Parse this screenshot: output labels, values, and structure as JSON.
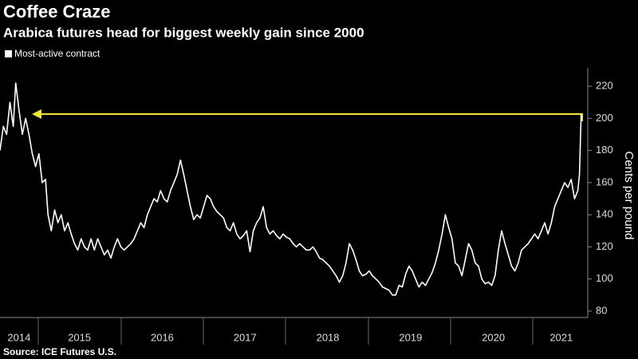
{
  "chart_data": {
    "type": "line",
    "title": "Coffee Craze",
    "subtitle": "Arabica futures head for biggest weekly gain since 2000",
    "y_axis_label": "Cents per pound",
    "source": "Source: ICE Futures U.S.",
    "grid": false,
    "legend_position": "top-left",
    "xlim": [
      2014.54,
      2021.64
    ],
    "xticks": [
      {
        "value": 2014.77,
        "label": "2014"
      },
      {
        "value": 2015.5,
        "label": "2015"
      },
      {
        "value": 2016.5,
        "label": "2016"
      },
      {
        "value": 2017.5,
        "label": "2017"
      },
      {
        "value": 2018.5,
        "label": "2018"
      },
      {
        "value": 2019.5,
        "label": "2019"
      },
      {
        "value": 2020.5,
        "label": "2020"
      },
      {
        "value": 2021.32,
        "label": "2021"
      }
    ],
    "ylim": [
      76,
      228
    ],
    "yticks": [
      80,
      100,
      120,
      140,
      160,
      180,
      200,
      220
    ],
    "x": [
      2014.54,
      2014.58,
      2014.62,
      2014.66,
      2014.7,
      2014.73,
      2014.77,
      2014.81,
      2014.85,
      2014.89,
      2014.93,
      2014.97,
      2015.01,
      2015.05,
      2015.09,
      2015.12,
      2015.16,
      2015.2,
      2015.24,
      2015.28,
      2015.32,
      2015.36,
      2015.4,
      2015.44,
      2015.48,
      2015.52,
      2015.56,
      2015.6,
      2015.64,
      2015.68,
      2015.72,
      2015.76,
      2015.8,
      2015.84,
      2015.88,
      2015.92,
      2015.96,
      2016.0,
      2016.04,
      2016.08,
      2016.12,
      2016.16,
      2016.2,
      2016.24,
      2016.28,
      2016.32,
      2016.36,
      2016.4,
      2016.44,
      2016.48,
      2016.52,
      2016.56,
      2016.6,
      2016.64,
      2016.68,
      2016.72,
      2016.76,
      2016.8,
      2016.84,
      2016.88,
      2016.92,
      2016.96,
      2017.0,
      2017.04,
      2017.08,
      2017.12,
      2017.16,
      2017.2,
      2017.24,
      2017.28,
      2017.32,
      2017.36,
      2017.4,
      2017.44,
      2017.48,
      2017.52,
      2017.56,
      2017.6,
      2017.64,
      2017.68,
      2017.72,
      2017.76,
      2017.8,
      2017.84,
      2017.88,
      2017.92,
      2017.96,
      2018.0,
      2018.04,
      2018.08,
      2018.12,
      2018.16,
      2018.2,
      2018.24,
      2018.28,
      2018.32,
      2018.36,
      2018.4,
      2018.44,
      2018.48,
      2018.52,
      2018.56,
      2018.6,
      2018.64,
      2018.68,
      2018.72,
      2018.76,
      2018.8,
      2018.84,
      2018.88,
      2018.92,
      2018.96,
      2019.0,
      2019.04,
      2019.08,
      2019.12,
      2019.16,
      2019.2,
      2019.24,
      2019.28,
      2019.32,
      2019.36,
      2019.4,
      2019.44,
      2019.48,
      2019.52,
      2019.56,
      2019.6,
      2019.64,
      2019.68,
      2019.72,
      2019.76,
      2019.8,
      2019.84,
      2019.88,
      2019.92,
      2019.96,
      2020.0,
      2020.04,
      2020.08,
      2020.12,
      2020.16,
      2020.2,
      2020.24,
      2020.28,
      2020.32,
      2020.36,
      2020.4,
      2020.44,
      2020.48,
      2020.52,
      2020.56,
      2020.6,
      2020.64,
      2020.68,
      2020.72,
      2020.76,
      2020.8,
      2020.84,
      2020.88,
      2020.92,
      2020.96,
      2021.0,
      2021.04,
      2021.08,
      2021.12,
      2021.16,
      2021.2,
      2021.24,
      2021.28,
      2021.32,
      2021.36,
      2021.4,
      2021.44,
      2021.48,
      2021.52,
      2021.54,
      2021.56
    ],
    "series": [
      {
        "name": "Most-active contract",
        "color": "#ffffff",
        "values": [
          180,
          195,
          190,
          210,
          195,
          222,
          205,
          190,
          200,
          190,
          178,
          170,
          178,
          160,
          162,
          140,
          130,
          143,
          135,
          140,
          130,
          135,
          128,
          122,
          118,
          125,
          120,
          118,
          125,
          118,
          125,
          120,
          115,
          118,
          113,
          120,
          125,
          120,
          118,
          120,
          122,
          125,
          130,
          135,
          132,
          140,
          145,
          150,
          148,
          155,
          150,
          148,
          155,
          160,
          165,
          174,
          165,
          155,
          145,
          137,
          140,
          138,
          145,
          152,
          150,
          145,
          142,
          140,
          138,
          132,
          130,
          135,
          128,
          125,
          127,
          130,
          117,
          130,
          135,
          138,
          145,
          132,
          128,
          130,
          127,
          125,
          128,
          126,
          125,
          122,
          120,
          122,
          120,
          118,
          118,
          120,
          117,
          113,
          112,
          110,
          108,
          105,
          102,
          98,
          102,
          110,
          122,
          118,
          112,
          105,
          102,
          103,
          105,
          102,
          100,
          98,
          95,
          94,
          93,
          90,
          90,
          96,
          95,
          103,
          108,
          105,
          100,
          95,
          98,
          96,
          100,
          104,
          110,
          118,
          128,
          140,
          132,
          125,
          110,
          108,
          102,
          112,
          122,
          118,
          110,
          108,
          100,
          97,
          98,
          96,
          102,
          118,
          130,
          122,
          115,
          108,
          105,
          110,
          118,
          120,
          122,
          125,
          128,
          125,
          130,
          135,
          128,
          135,
          145,
          150,
          155,
          160,
          157,
          162,
          150,
          155,
          165,
          203
        ]
      }
    ]
  }
}
